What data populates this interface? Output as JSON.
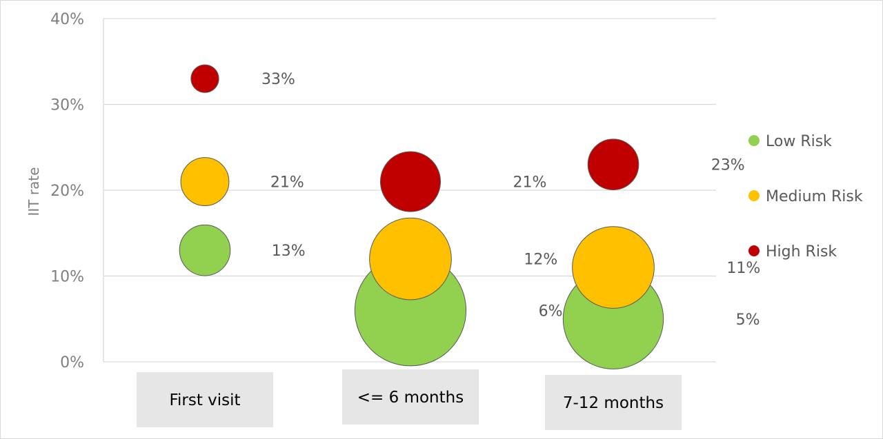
{
  "chart_data": {
    "type": "bubble",
    "ylabel": "IIT rate",
    "ylim": [
      0,
      40
    ],
    "y_ticks": [
      "0%",
      "10%",
      "20%",
      "30%",
      "40%"
    ],
    "categories": [
      "First visit",
      "<= 6 months",
      "7-12 months"
    ],
    "series": [
      {
        "name": "Low Risk",
        "color": "#92d050",
        "values": [
          13,
          6,
          5
        ],
        "labels": [
          "13%",
          "6%",
          "5%"
        ],
        "sizes": [
          1.0,
          4.8,
          3.9
        ]
      },
      {
        "name": "Medium Risk",
        "color": "#ffc000",
        "values": [
          21,
          12,
          11
        ],
        "labels": [
          "21%",
          "12%",
          "11%"
        ],
        "sizes": [
          0.9,
          2.6,
          2.6
        ]
      },
      {
        "name": "High Risk",
        "color": "#c00000",
        "values": [
          33,
          21,
          23
        ],
        "labels": [
          "33%",
          "21%",
          "23%"
        ],
        "sizes": [
          0.3,
          1.4,
          1.0
        ]
      }
    ],
    "legend_position": "right",
    "grid": true
  }
}
